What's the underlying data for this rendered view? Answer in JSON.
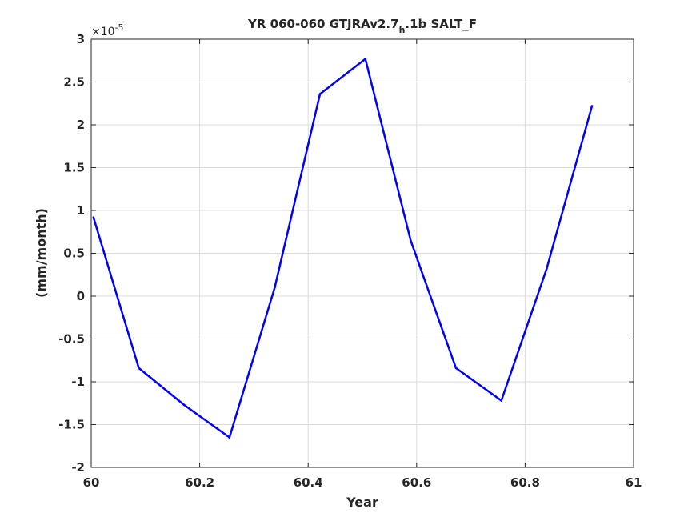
{
  "chart_data": {
    "type": "line",
    "title": "YR 060-060 GTJRAv2.7",
    "title_subscript": "h",
    "title_suffix": ".1b SALT_F",
    "xlabel": "Year",
    "ylabel": "(mm/month)",
    "y_exponent": "×10",
    "y_exponent_power": "-5",
    "xlim": [
      60,
      61
    ],
    "ylim": [
      -2,
      3
    ],
    "xticks": [
      "60",
      "60.2",
      "60.4",
      "60.6",
      "60.8",
      "61"
    ],
    "xtick_values": [
      60,
      60.2,
      60.4,
      60.6,
      60.8,
      61
    ],
    "yticks": [
      "-2",
      "-1.5",
      "-1",
      "-0.5",
      "0",
      "0.5",
      "1",
      "1.5",
      "2",
      "2.5",
      "3"
    ],
    "ytick_values": [
      -2,
      -1.5,
      -1,
      -0.5,
      0,
      0.5,
      1,
      1.5,
      2,
      2.5,
      3
    ],
    "grid": true,
    "series": [
      {
        "color": "#0000ff",
        "x": [
          60.0042,
          60.0877,
          60.1712,
          60.2548,
          60.3384,
          60.4219,
          60.5055,
          60.589,
          60.6726,
          60.7562,
          60.8397,
          60.9233
        ],
        "values": [
          0.92,
          -0.84,
          -1.27,
          -1.65,
          0.1,
          2.36,
          2.77,
          0.65,
          -0.84,
          -1.22,
          0.32,
          2.22
        ]
      }
    ]
  }
}
